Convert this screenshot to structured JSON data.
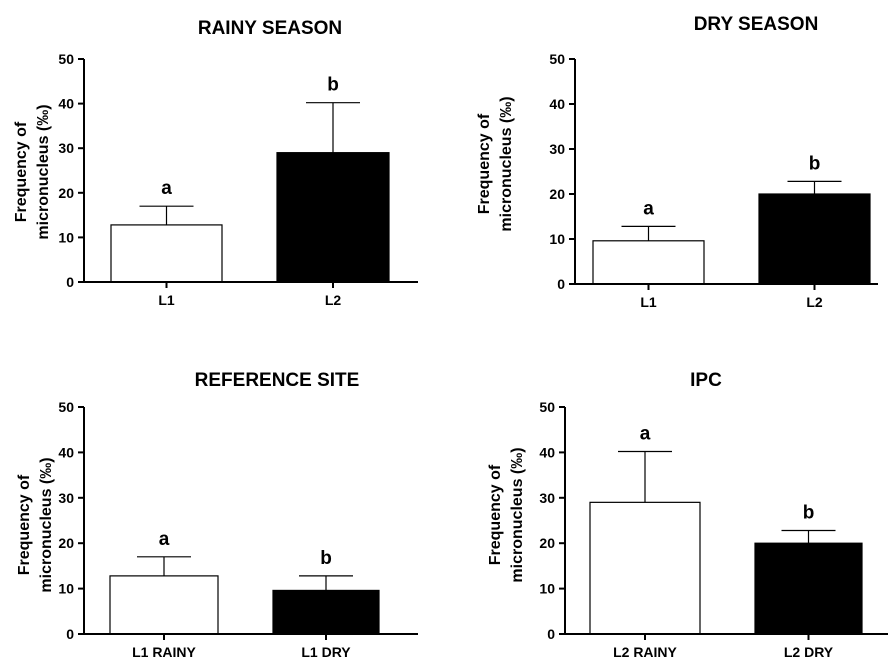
{
  "chart_data": [
    {
      "type": "bar",
      "title": "RAINY SEASON",
      "ylabel": [
        "Frequency of",
        "micronucleus (‰)"
      ],
      "ylim": [
        0,
        50
      ],
      "yticks": [
        "0",
        "10",
        "20",
        "30",
        "40",
        "50"
      ],
      "categories": [
        "L1",
        "L2"
      ],
      "values": [
        12.8,
        29.0
      ],
      "errors": [
        4.2,
        11.2
      ],
      "significance": [
        "a",
        "b"
      ],
      "bar_colors": [
        "#ffffff",
        "#000000"
      ]
    },
    {
      "type": "bar",
      "title": "DRY SEASON",
      "ylabel": [
        "Frequency of",
        "micronucleus (‰)"
      ],
      "ylim": [
        0,
        50
      ],
      "yticks": [
        "0",
        "10",
        "20",
        "30",
        "40",
        "50"
      ],
      "categories": [
        "L1",
        "L2"
      ],
      "values": [
        9.6,
        20.0
      ],
      "errors": [
        3.2,
        2.8
      ],
      "significance": [
        "a",
        "b"
      ],
      "bar_colors": [
        "#ffffff",
        "#000000"
      ]
    },
    {
      "type": "bar",
      "title": "REFERENCE SITE",
      "ylabel": [
        "Frequency of",
        "micronucleus (‰)"
      ],
      "ylim": [
        0,
        50
      ],
      "yticks": [
        "0",
        "10",
        "20",
        "30",
        "40",
        "50"
      ],
      "categories": [
        "L1 RAINY",
        "L1 DRY"
      ],
      "values": [
        12.8,
        9.6
      ],
      "errors": [
        4.2,
        3.2
      ],
      "significance": [
        "a",
        "b"
      ],
      "bar_colors": [
        "#ffffff",
        "#000000"
      ]
    },
    {
      "type": "bar",
      "title": "IPC",
      "ylabel": [
        "Frequency of",
        "micronucleus (‰)"
      ],
      "ylim": [
        0,
        50
      ],
      "yticks": [
        "0",
        "10",
        "20",
        "30",
        "40",
        "50"
      ],
      "categories": [
        "L2 RAINY",
        "L2 DRY"
      ],
      "values": [
        29.0,
        20.0
      ],
      "errors": [
        11.2,
        2.8
      ],
      "significance": [
        "a",
        "b"
      ],
      "bar_colors": [
        "#ffffff",
        "#000000"
      ]
    }
  ]
}
